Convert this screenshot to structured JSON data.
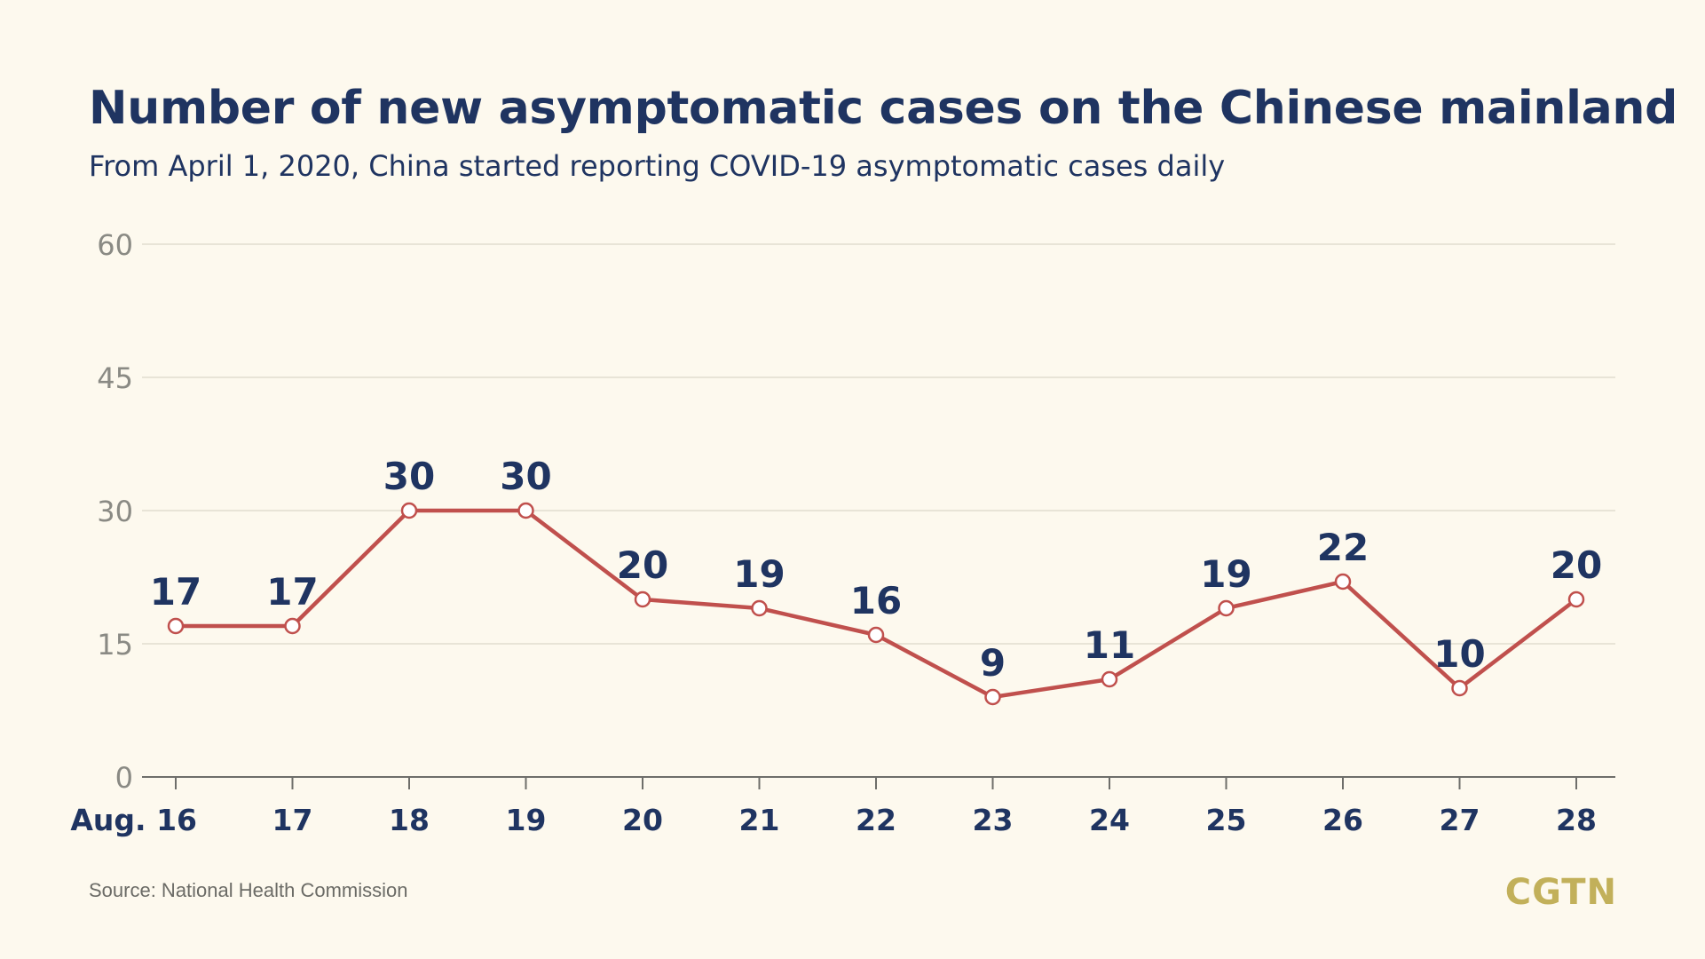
{
  "header": {
    "title": "Number of new asymptomatic cases on the Chinese mainland",
    "subtitle": "From April 1, 2020, China started reporting COVID-19 asymptomatic cases daily"
  },
  "footer": {
    "source": "Source: National Health Commission",
    "logo": "CGTN"
  },
  "colors": {
    "background": "#fdf9ee",
    "title": "#1f3461",
    "line": "#c0504d",
    "axis_text": "#8a8a84",
    "logo": "#c2b05a"
  },
  "chart_data": {
    "type": "line",
    "title": "Number of new asymptomatic cases on the Chinese mainland",
    "subtitle": "From April 1, 2020, China started reporting COVID-19 asymptomatic cases daily",
    "categories": [
      "Aug. 16",
      "17",
      "18",
      "19",
      "20",
      "21",
      "22",
      "23",
      "24",
      "25",
      "26",
      "27",
      "28"
    ],
    "values": [
      17,
      17,
      30,
      30,
      20,
      19,
      16,
      9,
      11,
      19,
      22,
      10,
      20
    ],
    "data_labels": [
      "17",
      "17",
      "30",
      "30",
      "20",
      "19",
      "16",
      "9",
      "11",
      "19",
      "22",
      "10",
      "20"
    ],
    "yticks": [
      0,
      15,
      30,
      45,
      60
    ],
    "ylim": [
      0,
      60
    ],
    "grid": true,
    "legend": "none"
  }
}
